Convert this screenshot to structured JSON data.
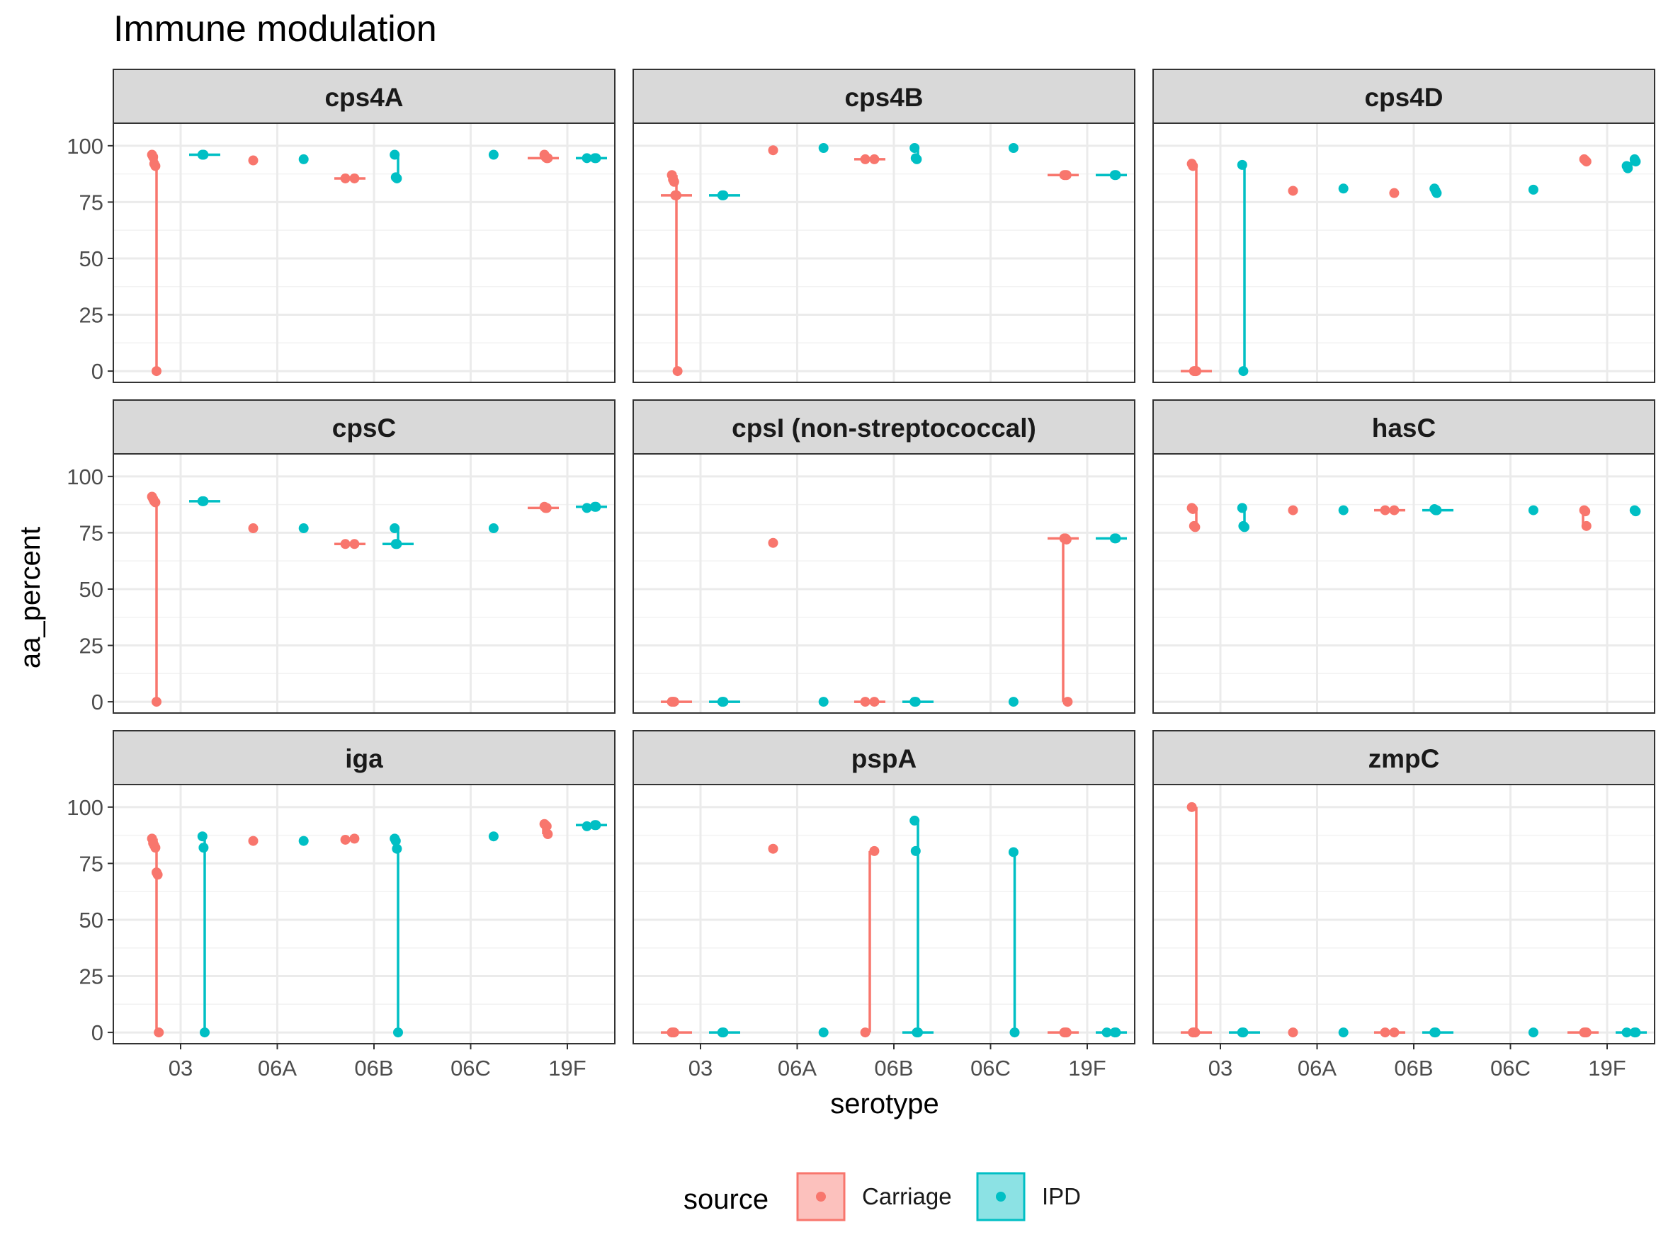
{
  "chart_data": {
    "type": "violin+jitter (faceted)",
    "title": "Immune modulation",
    "xlabel": "serotype",
    "ylabel": "aa_percent",
    "categories": [
      "03",
      "06A",
      "06B",
      "06C",
      "19F"
    ],
    "ylim": [
      -5,
      110
    ],
    "yticks": [
      "0",
      "25",
      "50",
      "75",
      "100"
    ],
    "grid": true,
    "legend": {
      "title": "source",
      "position": "bottom",
      "entries": [
        {
          "name": "Carriage",
          "color": "#F8766D"
        },
        {
          "name": "IPD",
          "color": "#00BFC4"
        }
      ]
    },
    "facets": [
      {
        "name": "cps4A",
        "groups": [
          {
            "cat": "03",
            "src": "Carriage",
            "points": [
              96,
              95,
              92,
              91,
              0
            ]
          },
          {
            "cat": "03",
            "src": "IPD",
            "points": [
              96,
              96
            ]
          },
          {
            "cat": "06A",
            "src": "Carriage",
            "points": [
              93.5
            ]
          },
          {
            "cat": "06A",
            "src": "IPD",
            "points": [
              94
            ]
          },
          {
            "cat": "06B",
            "src": "Carriage",
            "points": [
              85.5,
              85.5
            ]
          },
          {
            "cat": "06B",
            "src": "IPD",
            "points": [
              96,
              86,
              85.5
            ]
          },
          {
            "cat": "06C",
            "src": "IPD",
            "points": [
              96
            ]
          },
          {
            "cat": "19F",
            "src": "Carriage",
            "points": [
              96,
              95,
              94.5,
              94.5
            ]
          },
          {
            "cat": "19F",
            "src": "IPD",
            "points": [
              94.5,
              94.5,
              94.5
            ]
          }
        ]
      },
      {
        "name": "cps4B",
        "groups": [
          {
            "cat": "03",
            "src": "Carriage",
            "points": [
              87,
              85,
              84,
              78,
              78,
              0
            ]
          },
          {
            "cat": "03",
            "src": "IPD",
            "points": [
              78,
              78
            ]
          },
          {
            "cat": "06A",
            "src": "Carriage",
            "points": [
              98
            ]
          },
          {
            "cat": "06A",
            "src": "IPD",
            "points": [
              99
            ]
          },
          {
            "cat": "06B",
            "src": "Carriage",
            "points": [
              94,
              94
            ]
          },
          {
            "cat": "06B",
            "src": "IPD",
            "points": [
              99,
              94.5,
              94
            ]
          },
          {
            "cat": "06C",
            "src": "IPD",
            "points": [
              99
            ]
          },
          {
            "cat": "19F",
            "src": "Carriage",
            "points": [
              87,
              87,
              87
            ]
          },
          {
            "cat": "19F",
            "src": "IPD",
            "points": [
              87,
              87
            ]
          }
        ]
      },
      {
        "name": "cps4D",
        "groups": [
          {
            "cat": "03",
            "src": "Carriage",
            "points": [
              92,
              91,
              0,
              0,
              0
            ]
          },
          {
            "cat": "03",
            "src": "IPD",
            "points": [
              91.5,
              0
            ]
          },
          {
            "cat": "06A",
            "src": "Carriage",
            "points": [
              80
            ]
          },
          {
            "cat": "06A",
            "src": "IPD",
            "points": [
              81
            ]
          },
          {
            "cat": "06B",
            "src": "Carriage",
            "points": [
              79
            ]
          },
          {
            "cat": "06B",
            "src": "IPD",
            "points": [
              81,
              80,
              79
            ]
          },
          {
            "cat": "06C",
            "src": "IPD",
            "points": [
              80.5
            ]
          },
          {
            "cat": "19F",
            "src": "Carriage",
            "points": [
              94,
              93.5,
              93
            ]
          },
          {
            "cat": "19F",
            "src": "IPD",
            "points": [
              94,
              93,
              91,
              90
            ]
          }
        ]
      },
      {
        "name": "cpsC",
        "groups": [
          {
            "cat": "03",
            "src": "Carriage",
            "points": [
              91,
              90,
              89,
              88.5,
              0
            ]
          },
          {
            "cat": "03",
            "src": "IPD",
            "points": [
              89,
              89
            ]
          },
          {
            "cat": "06A",
            "src": "Carriage",
            "points": [
              77
            ]
          },
          {
            "cat": "06A",
            "src": "IPD",
            "points": [
              77
            ]
          },
          {
            "cat": "06B",
            "src": "Carriage",
            "points": [
              70,
              70
            ]
          },
          {
            "cat": "06B",
            "src": "IPD",
            "points": [
              77,
              70,
              70
            ]
          },
          {
            "cat": "06C",
            "src": "IPD",
            "points": [
              77
            ]
          },
          {
            "cat": "19F",
            "src": "Carriage",
            "points": [
              86.5,
              86,
              86
            ]
          },
          {
            "cat": "19F",
            "src": "IPD",
            "points": [
              86.5,
              86.5,
              86
            ]
          }
        ]
      },
      {
        "name": "cpsI (non-streptococcal)",
        "groups": [
          {
            "cat": "03",
            "src": "Carriage",
            "points": [
              0,
              0,
              0
            ]
          },
          {
            "cat": "03",
            "src": "IPD",
            "points": [
              0,
              0
            ]
          },
          {
            "cat": "06A",
            "src": "Carriage",
            "points": [
              70.5
            ]
          },
          {
            "cat": "06A",
            "src": "IPD",
            "points": [
              0
            ]
          },
          {
            "cat": "06B",
            "src": "Carriage",
            "points": [
              0,
              0
            ]
          },
          {
            "cat": "06B",
            "src": "IPD",
            "points": [
              0,
              0
            ]
          },
          {
            "cat": "06C",
            "src": "IPD",
            "points": [
              0
            ]
          },
          {
            "cat": "19F",
            "src": "Carriage",
            "points": [
              72.5,
              72.5,
              72,
              0
            ]
          },
          {
            "cat": "19F",
            "src": "IPD",
            "points": [
              72.5,
              72.5
            ]
          }
        ]
      },
      {
        "name": "hasC",
        "groups": [
          {
            "cat": "03",
            "src": "Carriage",
            "points": [
              86,
              85.5,
              78,
              77.5
            ]
          },
          {
            "cat": "03",
            "src": "IPD",
            "points": [
              86,
              78,
              77.5
            ]
          },
          {
            "cat": "06A",
            "src": "Carriage",
            "points": [
              85
            ]
          },
          {
            "cat": "06A",
            "src": "IPD",
            "points": [
              85
            ]
          },
          {
            "cat": "06B",
            "src": "Carriage",
            "points": [
              85,
              85
            ]
          },
          {
            "cat": "06B",
            "src": "IPD",
            "points": [
              85.5,
              85,
              85
            ]
          },
          {
            "cat": "06C",
            "src": "IPD",
            "points": [
              85
            ]
          },
          {
            "cat": "19F",
            "src": "Carriage",
            "points": [
              85,
              84.5,
              78
            ]
          },
          {
            "cat": "19F",
            "src": "IPD",
            "points": [
              85,
              84.5
            ]
          }
        ]
      },
      {
        "name": "iga",
        "groups": [
          {
            "cat": "03",
            "src": "Carriage",
            "points": [
              86,
              84,
              83,
              82,
              71,
              70,
              0
            ]
          },
          {
            "cat": "03",
            "src": "IPD",
            "points": [
              87,
              82,
              0
            ]
          },
          {
            "cat": "06A",
            "src": "Carriage",
            "points": [
              85
            ]
          },
          {
            "cat": "06A",
            "src": "IPD",
            "points": [
              85
            ]
          },
          {
            "cat": "06B",
            "src": "Carriage",
            "points": [
              86,
              85.5
            ]
          },
          {
            "cat": "06B",
            "src": "IPD",
            "points": [
              86,
              85,
              81.5,
              0
            ]
          },
          {
            "cat": "06C",
            "src": "IPD",
            "points": [
              87
            ]
          },
          {
            "cat": "19F",
            "src": "Carriage",
            "points": [
              92.5,
              92,
              91.5,
              88
            ]
          },
          {
            "cat": "19F",
            "src": "IPD",
            "points": [
              92,
              92,
              91.5
            ]
          }
        ]
      },
      {
        "name": "pspA",
        "groups": [
          {
            "cat": "03",
            "src": "Carriage",
            "points": [
              0,
              0,
              0
            ]
          },
          {
            "cat": "03",
            "src": "IPD",
            "points": [
              0,
              0
            ]
          },
          {
            "cat": "06A",
            "src": "Carriage",
            "points": [
              81.5
            ]
          },
          {
            "cat": "06A",
            "src": "IPD",
            "points": [
              0
            ]
          },
          {
            "cat": "06B",
            "src": "Carriage",
            "points": [
              80.5,
              0
            ]
          },
          {
            "cat": "06B",
            "src": "IPD",
            "points": [
              94,
              80.5,
              0,
              0
            ]
          },
          {
            "cat": "06C",
            "src": "IPD",
            "points": [
              80,
              0
            ]
          },
          {
            "cat": "19F",
            "src": "Carriage",
            "points": [
              0,
              0,
              0
            ]
          },
          {
            "cat": "19F",
            "src": "IPD",
            "points": [
              0,
              0,
              0
            ]
          }
        ]
      },
      {
        "name": "zmpC",
        "groups": [
          {
            "cat": "03",
            "src": "Carriage",
            "points": [
              100,
              0,
              0,
              0
            ]
          },
          {
            "cat": "03",
            "src": "IPD",
            "points": [
              0,
              0
            ]
          },
          {
            "cat": "06A",
            "src": "Carriage",
            "points": [
              0
            ]
          },
          {
            "cat": "06A",
            "src": "IPD",
            "points": [
              0
            ]
          },
          {
            "cat": "06B",
            "src": "Carriage",
            "points": [
              0,
              0
            ]
          },
          {
            "cat": "06B",
            "src": "IPD",
            "points": [
              0,
              0
            ]
          },
          {
            "cat": "06C",
            "src": "IPD",
            "points": [
              0
            ]
          },
          {
            "cat": "19F",
            "src": "Carriage",
            "points": [
              0,
              0,
              0
            ]
          },
          {
            "cat": "19F",
            "src": "IPD",
            "points": [
              0,
              0,
              0
            ]
          }
        ]
      }
    ]
  }
}
